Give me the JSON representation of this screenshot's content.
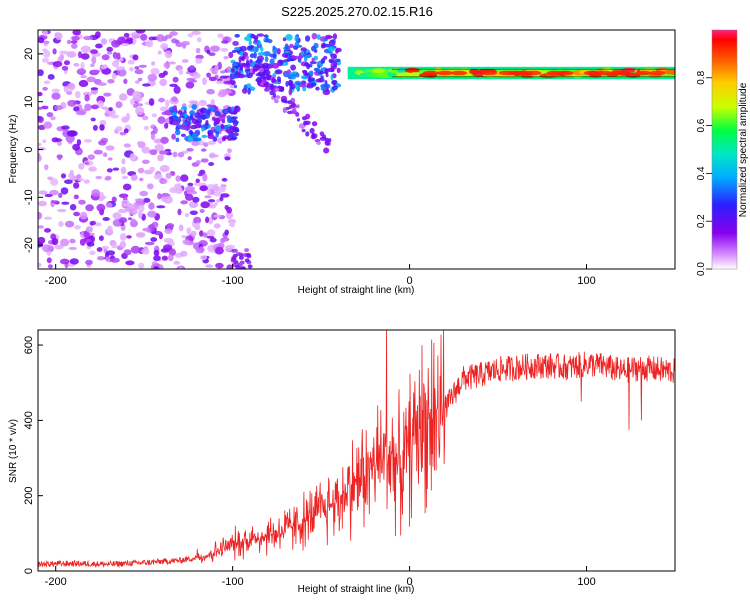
{
  "title": "S225.2025.270.02.15.R16",
  "chart_data": [
    {
      "type": "heatmap",
      "xlabel": "Height of straight line (km)",
      "ylabel": "Frequency (Hz)",
      "xlim": [
        -210,
        150
      ],
      "ylim": [
        -25,
        25
      ],
      "xticks": [
        -200,
        -100,
        0,
        100
      ],
      "yticks": [
        -20,
        -10,
        0,
        10,
        20
      ],
      "colorbar": {
        "label": "Normalized spectral amplitude",
        "ticks": [
          0.0,
          0.2,
          0.4,
          0.6,
          0.8
        ],
        "range": [
          0,
          1
        ]
      },
      "carrier_frequency_hz": 16,
      "features": [
        {
          "name": "noise",
          "x_range": [
            -210,
            -100
          ],
          "freq_range": [
            -25,
            25
          ],
          "amplitude": 0.1
        },
        {
          "name": "band",
          "x_range": [
            -135,
            -97
          ],
          "freq_range": [
            2,
            9
          ],
          "amplitude": 0.35
        },
        {
          "name": "descending streaks",
          "x_range": [
            -100,
            -40
          ],
          "freq_range": [
            0,
            24
          ],
          "amplitude": 0.3
        },
        {
          "name": "carrier line",
          "x_range": [
            -20,
            150
          ],
          "freq_range": [
            15,
            17
          ],
          "amplitude": 0.95
        }
      ]
    },
    {
      "type": "line",
      "xlabel": "Height of straight line (km)",
      "ylabel": "SNR (10 * v/v)",
      "xlim": [
        -210,
        150
      ],
      "ylim": [
        0,
        640
      ],
      "xticks": [
        -200,
        -100,
        0,
        100
      ],
      "yticks": [
        0,
        200,
        400,
        600
      ],
      "series": [
        {
          "name": "SNR",
          "color": "#ee2222",
          "x": [
            -210,
            -190,
            -170,
            -150,
            -130,
            -115,
            -100,
            -90,
            -80,
            -70,
            -60,
            -50,
            -40,
            -30,
            -20,
            -15,
            -10,
            -5,
            0,
            5,
            10,
            15,
            20,
            25,
            30,
            40,
            50,
            60,
            70,
            80,
            90,
            100,
            110,
            120,
            130,
            140,
            150
          ],
          "values": [
            18,
            20,
            18,
            22,
            28,
            40,
            70,
            85,
            95,
            110,
            130,
            160,
            190,
            240,
            280,
            300,
            310,
            270,
            330,
            390,
            400,
            420,
            430,
            470,
            510,
            520,
            535,
            540,
            545,
            545,
            540,
            550,
            545,
            530,
            540,
            535,
            530
          ],
          "spikes": [
            {
              "x": -13,
              "value": 660
            },
            {
              "x": 124,
              "value": 375
            },
            {
              "x": 131,
              "value": 400
            },
            {
              "x": 97,
              "value": 450
            }
          ]
        }
      ]
    }
  ]
}
